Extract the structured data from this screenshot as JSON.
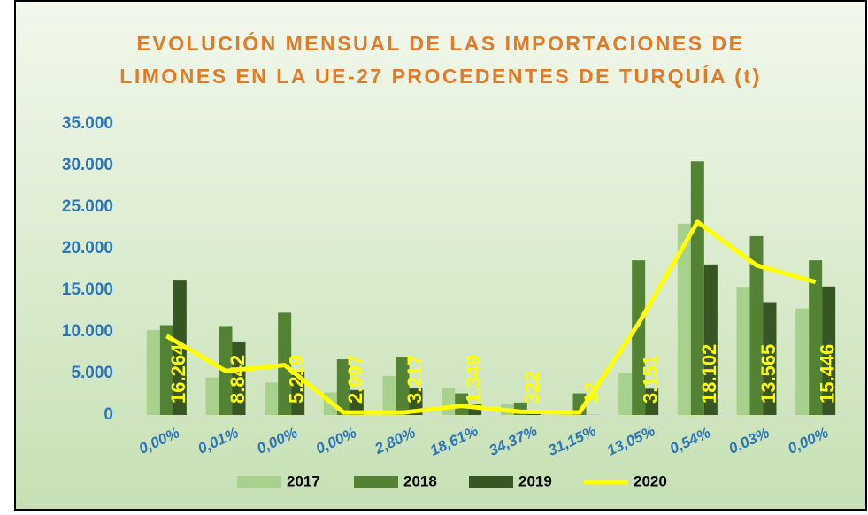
{
  "chart_data": {
    "type": "bar_line",
    "title": [
      "EVOLUCIÓN MENSUAL DE LAS IMPORTACIONES DE",
      "LIMONES EN LA UE-27 PROCEDENTES DE TURQUÍA (t)"
    ],
    "categories": [
      "0,00%",
      "0,01%",
      "0,00%",
      "0,00%",
      "2,80%",
      "18,61%",
      "34,37%",
      "31,15%",
      "13,05%",
      "0,54%",
      "0,03%",
      "0,00%"
    ],
    "series": [
      {
        "name": "2017",
        "color": "#a9d18e",
        "kind": "bar",
        "values": [
          10200,
          4500,
          3900,
          2700,
          4700,
          3300,
          1300,
          500,
          5000,
          23000,
          15400,
          12800
        ]
      },
      {
        "name": "2018",
        "color": "#548235",
        "kind": "bar",
        "values": [
          10800,
          10700,
          12300,
          6700,
          7000,
          2600,
          1500,
          2600,
          18600,
          30500,
          21500,
          18600
        ]
      },
      {
        "name": "2019",
        "color": "#375623",
        "kind": "bar",
        "values": [
          16264,
          8842,
          5219,
          2997,
          3217,
          1349,
          322,
          12,
          3151,
          18102,
          13565,
          15446
        ],
        "value_labels": [
          "16.264",
          "8.842",
          "5.219",
          "2.997",
          "3.217",
          "1.349",
          "322",
          "12",
          "3.151",
          "18.102",
          "13.565",
          "15.446"
        ]
      },
      {
        "name": "2020",
        "color": "#ffff00",
        "kind": "line",
        "values": [
          9500,
          5300,
          6000,
          300,
          300,
          1100,
          400,
          300,
          11000,
          23200,
          18000,
          16000
        ]
      }
    ],
    "ylim": [
      0,
      35000
    ],
    "yticks": [
      0,
      {
        "value": 5000,
        "label": "5.000"
      },
      {
        "value": 10000,
        "label": "10.000"
      },
      {
        "value": 15000,
        "label": "15.000"
      },
      {
        "value": 20000,
        "label": "20.000"
      },
      {
        "value": 25000,
        "label": "25.000"
      },
      {
        "value": 30000,
        "label": "30.000"
      },
      {
        "value": 35000,
        "label": "35.000"
      }
    ],
    "grid": false
  }
}
